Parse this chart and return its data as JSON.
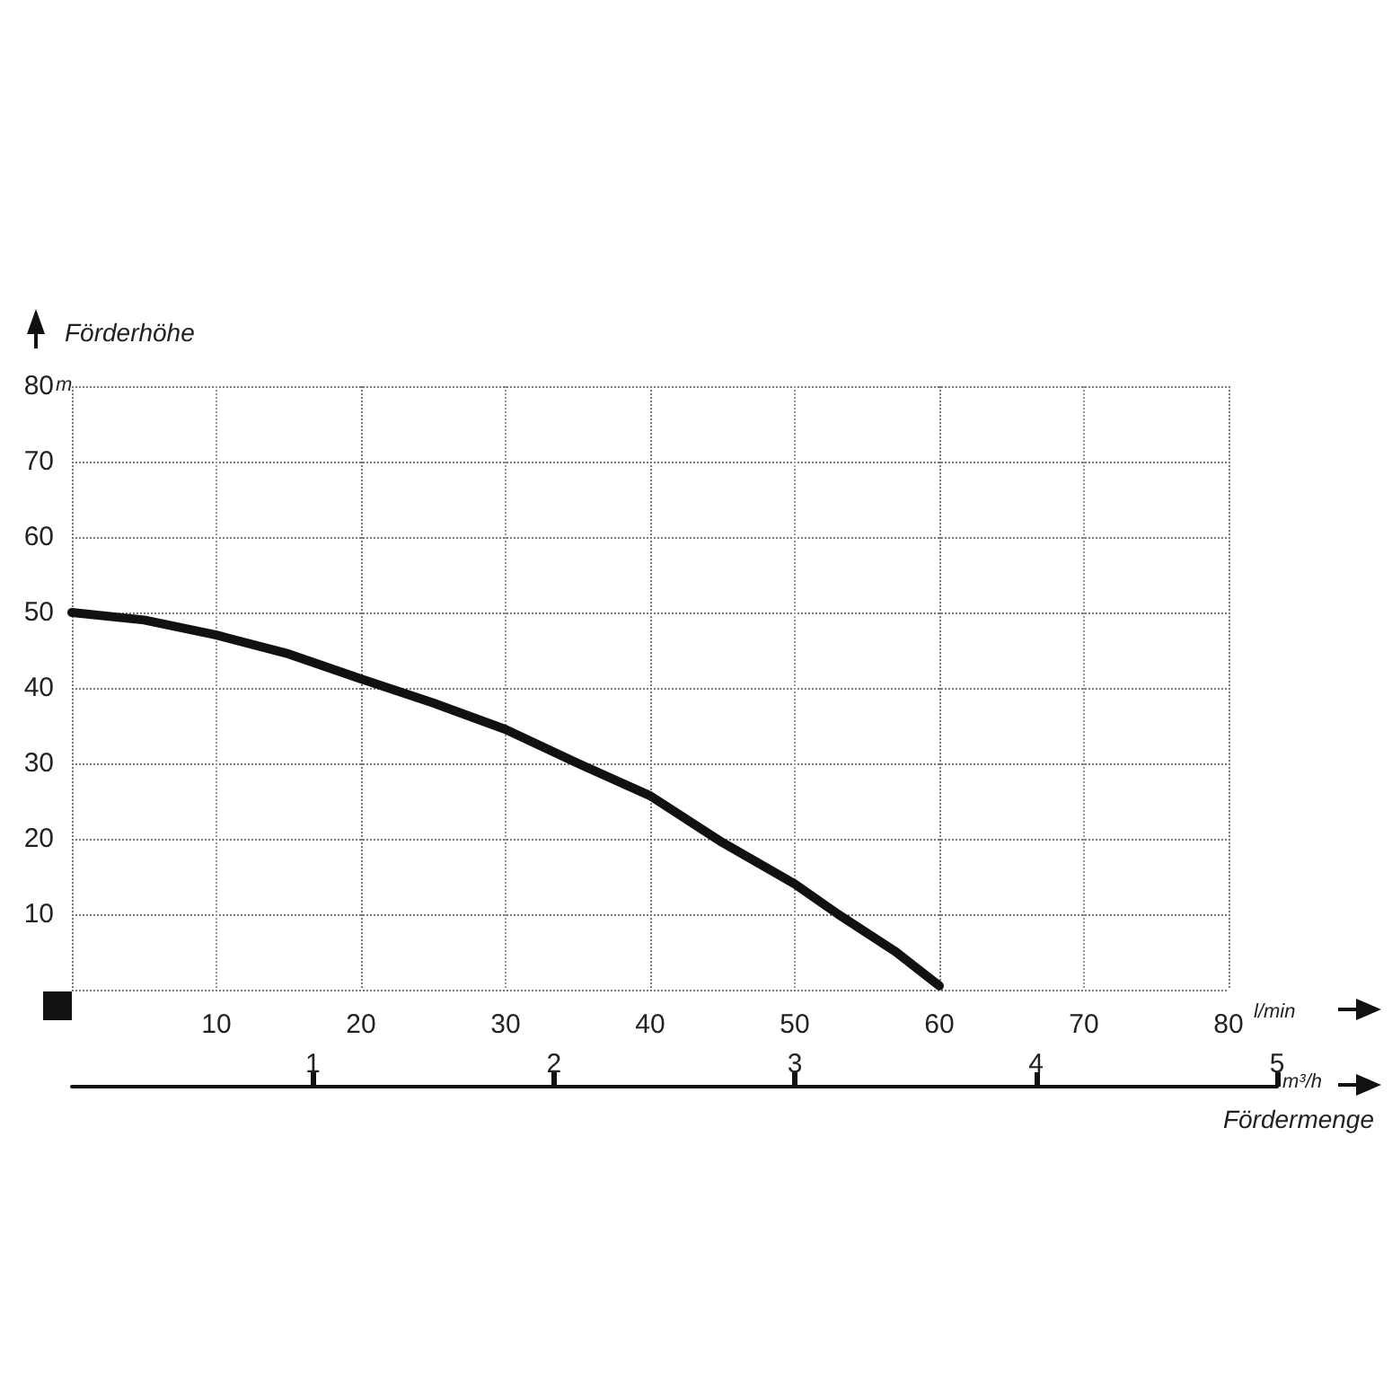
{
  "chart_data": {
    "type": "line",
    "ylabel": "Förderhöhe",
    "xlabel": "Fördermenge",
    "x": [
      0,
      5,
      10,
      15,
      20,
      25,
      30,
      35,
      40,
      45,
      50,
      53,
      57,
      60
    ],
    "series": [
      {
        "color": "#111111",
        "values": [
          50,
          49,
          47,
          44.5,
          41.2,
          38,
          34.5,
          30,
          25.7,
          19.5,
          14,
          10,
          5,
          0.5
        ]
      }
    ],
    "xlim": [
      0,
      80
    ],
    "xticks": [
      {
        "value": 0,
        "label": null
      },
      10,
      20,
      30,
      40,
      50,
      60,
      70,
      80
    ],
    "ylim": [
      0,
      80
    ],
    "yticks": [
      {
        "value": 0,
        "label": null
      },
      10,
      20,
      30,
      40,
      50,
      60,
      70,
      80
    ],
    "x2lim": [
      0,
      5
    ],
    "x2ticks": [
      1,
      2,
      3,
      4,
      5
    ],
    "annotations": [
      "m",
      "l/min",
      "m³/h"
    ],
    "grid": true,
    "marker": "none",
    "line_style": "solid"
  }
}
